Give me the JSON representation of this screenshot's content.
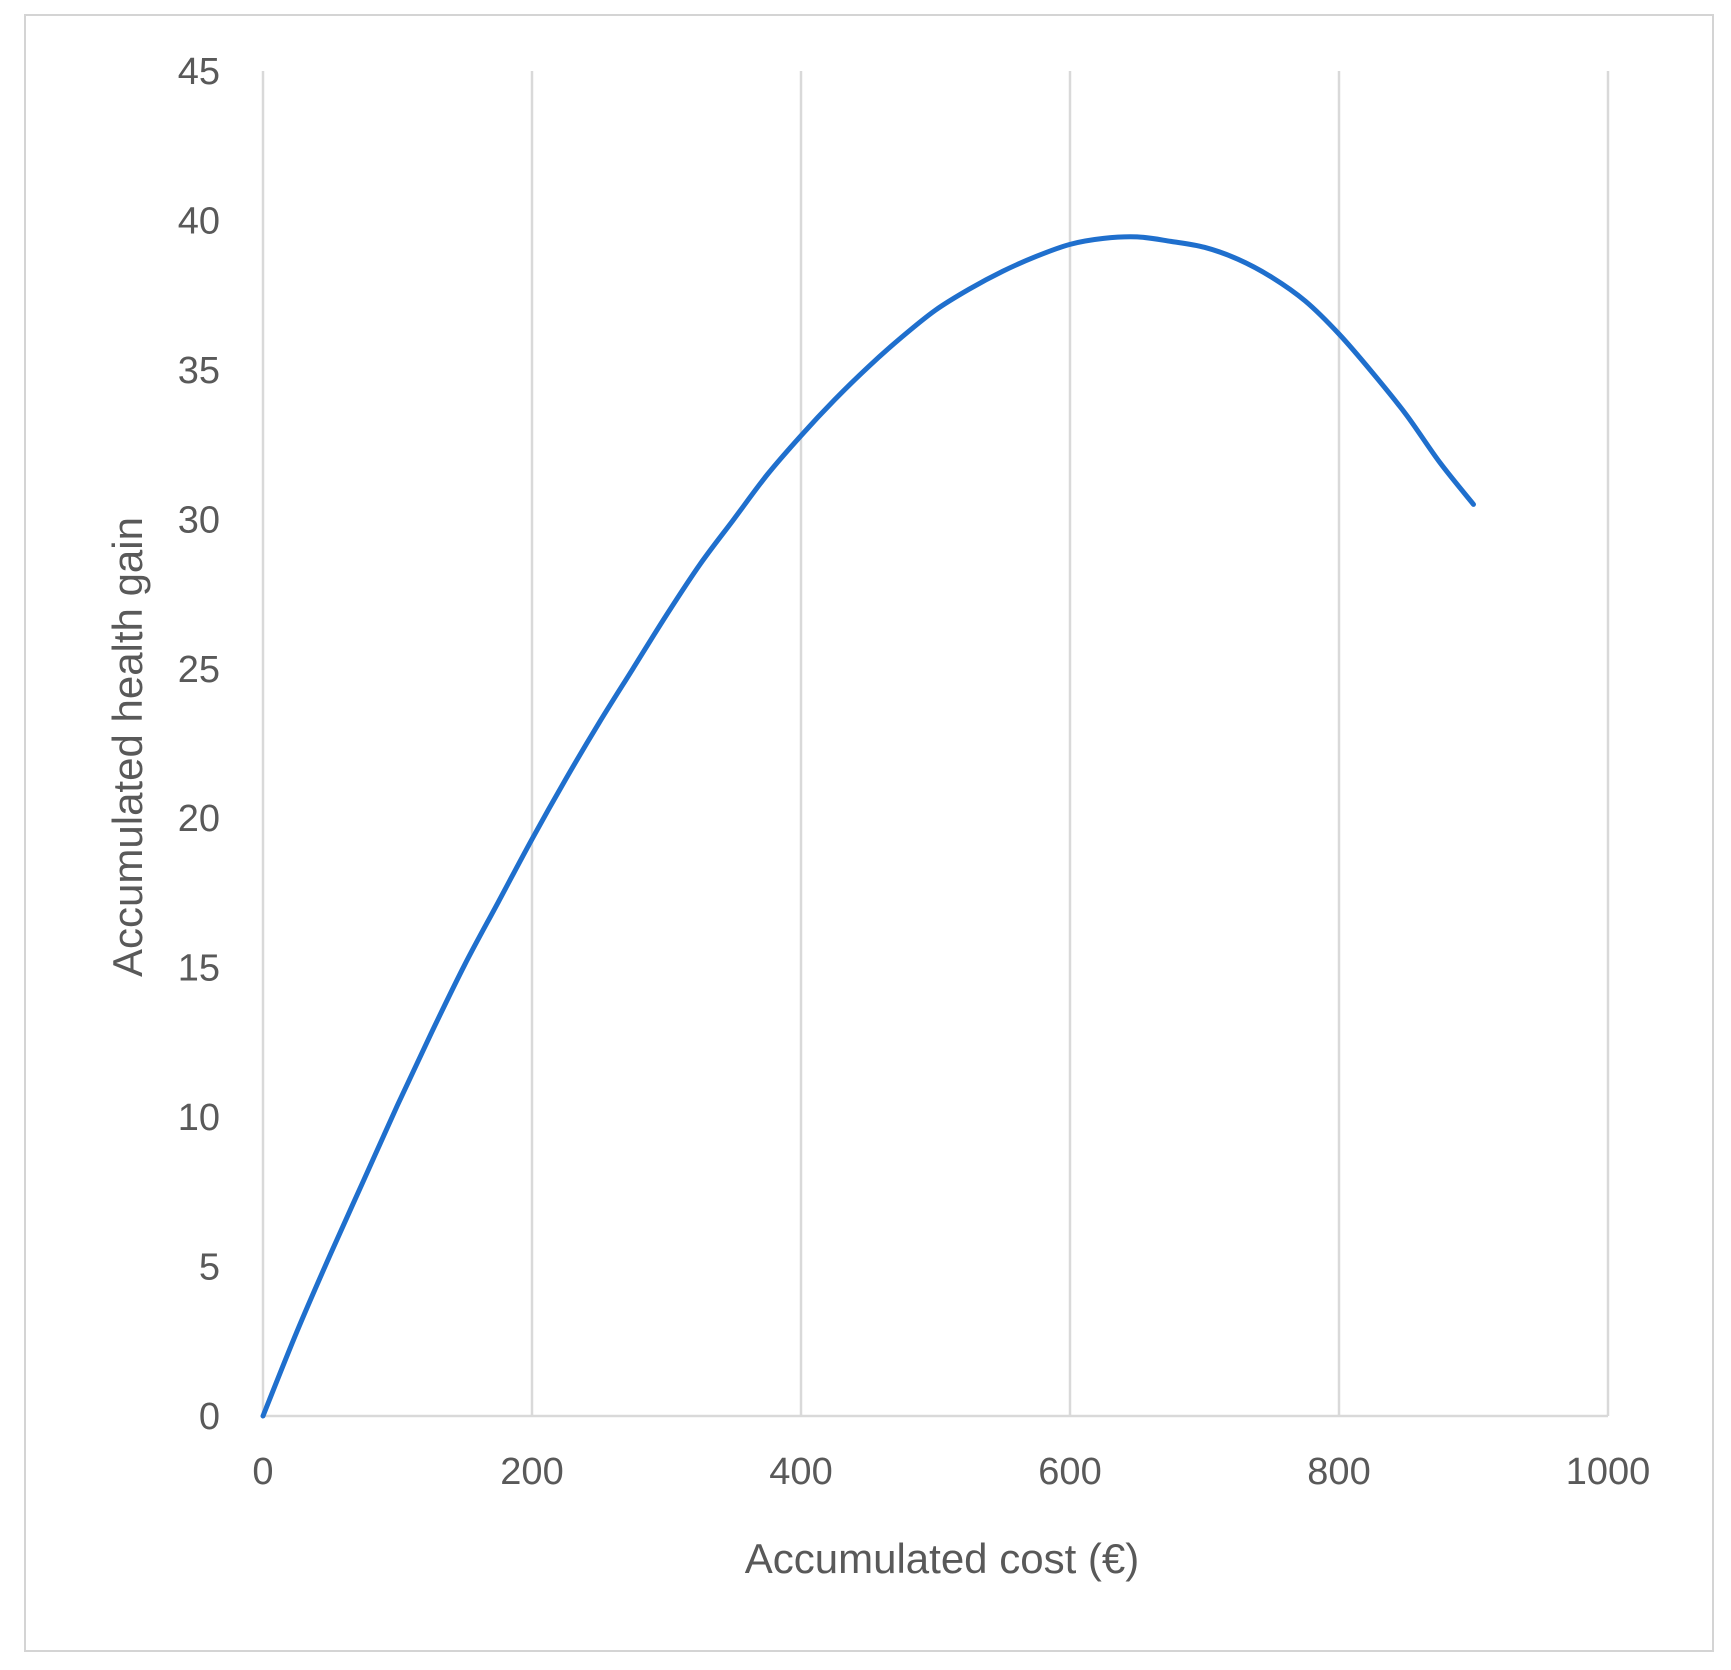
{
  "chart_data": {
    "type": "line",
    "title": "",
    "xlabel": "Accumulated cost (€)",
    "ylabel": "Accumulated health gain",
    "xlim": [
      0,
      1000
    ],
    "ylim": [
      0,
      45
    ],
    "x_ticks": [
      "0",
      "200",
      "400",
      "600",
      "800",
      "1000"
    ],
    "y_ticks": [
      "0",
      "5",
      "10",
      "15",
      "20",
      "25",
      "30",
      "35",
      "40",
      "45"
    ],
    "grid": "vertical",
    "legend": "none",
    "series": [
      {
        "color": "#1f6fcd",
        "points": [
          [
            0,
            0
          ],
          [
            25,
            2.8
          ],
          [
            50,
            5.4
          ],
          [
            75,
            7.9
          ],
          [
            100,
            10.4
          ],
          [
            125,
            12.8
          ],
          [
            150,
            15.1
          ],
          [
            175,
            17.2
          ],
          [
            200,
            19.3
          ],
          [
            225,
            21.3
          ],
          [
            250,
            23.2
          ],
          [
            275,
            25.0
          ],
          [
            300,
            26.8
          ],
          [
            325,
            28.5
          ],
          [
            350,
            30.0
          ],
          [
            375,
            31.5
          ],
          [
            400,
            32.8
          ],
          [
            425,
            34.0
          ],
          [
            450,
            35.1
          ],
          [
            475,
            36.1
          ],
          [
            500,
            37.0
          ],
          [
            525,
            37.7
          ],
          [
            550,
            38.3
          ],
          [
            575,
            38.8
          ],
          [
            600,
            39.2
          ],
          [
            625,
            39.4
          ],
          [
            650,
            39.45
          ],
          [
            675,
            39.3
          ],
          [
            700,
            39.1
          ],
          [
            725,
            38.7
          ],
          [
            750,
            38.1
          ],
          [
            775,
            37.3
          ],
          [
            800,
            36.2
          ],
          [
            825,
            34.9
          ],
          [
            850,
            33.5
          ],
          [
            875,
            31.9
          ],
          [
            900,
            30.5
          ]
        ]
      }
    ]
  }
}
